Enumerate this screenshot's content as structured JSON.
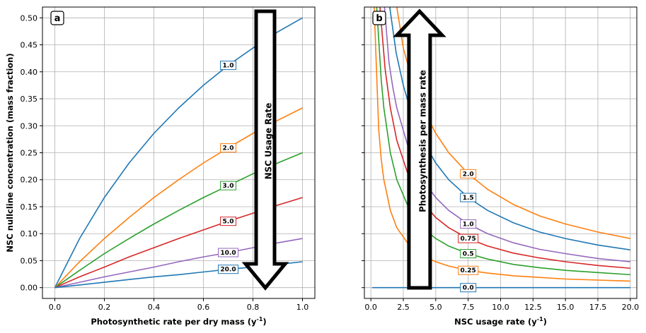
{
  "chart_data": [
    {
      "type": "line",
      "panel_label": "a",
      "xlabel": "Photosynthetic rate per dry mass (y",
      "xlabel_sup": "-1",
      "xlabel_end": ")",
      "ylabel": "NSC nullcline concentration (mass fraction)",
      "xlim": [
        -0.05,
        1.05
      ],
      "ylim": [
        -0.02,
        0.52
      ],
      "x_ticks": [
        0.0,
        0.2,
        0.4,
        0.6,
        0.8,
        1.0
      ],
      "x_tick_labels": [
        "0.0",
        "0.2",
        "0.4",
        "0.6",
        "0.8",
        "1.0"
      ],
      "y_ticks": [
        0.0,
        0.05,
        0.1,
        0.15,
        0.2,
        0.25,
        0.3,
        0.35,
        0.4,
        0.45,
        0.5
      ],
      "y_tick_labels": [
        "0.00",
        "0.05",
        "0.10",
        "0.15",
        "0.20",
        "0.25",
        "0.30",
        "0.35",
        "0.40",
        "0.45",
        "0.50"
      ],
      "grid": true,
      "arrow_text": "NSC Usage Rate",
      "arrow_direction": "down",
      "series": [
        {
          "label": "1.0",
          "color": "#1f77b4",
          "x": [
            0,
            0.1,
            0.2,
            0.3,
            0.4,
            0.5,
            0.6,
            0.7,
            0.8,
            0.9,
            1.0
          ],
          "y": [
            0,
            0.091,
            0.167,
            0.231,
            0.286,
            0.333,
            0.375,
            0.412,
            0.444,
            0.474,
            0.5
          ],
          "label_at": [
            0.7,
            0.412
          ]
        },
        {
          "label": "2.0",
          "color": "#ff7f0e",
          "x": [
            0,
            0.1,
            0.2,
            0.3,
            0.4,
            0.5,
            0.6,
            0.7,
            0.8,
            0.9,
            1.0
          ],
          "y": [
            0,
            0.048,
            0.091,
            0.13,
            0.167,
            0.2,
            0.231,
            0.259,
            0.286,
            0.31,
            0.333
          ],
          "label_at": [
            0.7,
            0.259
          ]
        },
        {
          "label": "3.0",
          "color": "#2ca02c",
          "x": [
            0,
            0.1,
            0.2,
            0.3,
            0.4,
            0.5,
            0.6,
            0.7,
            0.8,
            0.9,
            1.0
          ],
          "y": [
            0,
            0.032,
            0.063,
            0.091,
            0.118,
            0.143,
            0.167,
            0.189,
            0.211,
            0.231,
            0.25
          ],
          "label_at": [
            0.7,
            0.189
          ]
        },
        {
          "label": "5.0",
          "color": "#d62728",
          "x": [
            0,
            0.1,
            0.2,
            0.3,
            0.4,
            0.5,
            0.6,
            0.7,
            0.8,
            0.9,
            1.0
          ],
          "y": [
            0,
            0.02,
            0.038,
            0.057,
            0.074,
            0.091,
            0.107,
            0.123,
            0.138,
            0.153,
            0.167
          ],
          "label_at": [
            0.7,
            0.123
          ]
        },
        {
          "label": "10.0",
          "color": "#9467bd",
          "x": [
            0,
            0.1,
            0.2,
            0.3,
            0.4,
            0.5,
            0.6,
            0.7,
            0.8,
            0.9,
            1.0
          ],
          "y": [
            0,
            0.01,
            0.02,
            0.029,
            0.038,
            0.048,
            0.057,
            0.065,
            0.074,
            0.083,
            0.091
          ],
          "label_at": [
            0.7,
            0.065
          ]
        },
        {
          "label": "20.0",
          "color": "#1f77b4",
          "x": [
            0,
            0.1,
            0.2,
            0.3,
            0.4,
            0.5,
            0.6,
            0.7,
            0.8,
            0.9,
            1.0
          ],
          "y": [
            0,
            0.005,
            0.01,
            0.015,
            0.02,
            0.024,
            0.029,
            0.034,
            0.038,
            0.043,
            0.048
          ],
          "label_at": [
            0.7,
            0.034
          ]
        }
      ]
    },
    {
      "type": "line",
      "panel_label": "b",
      "xlabel": "NSC usage rate (y",
      "xlabel_sup": "-1",
      "xlabel_end": ")",
      "ylabel": "",
      "xlim": [
        -0.5,
        20.5
      ],
      "ylim": [
        -0.02,
        0.52
      ],
      "x_ticks": [
        0,
        2.5,
        5,
        7.5,
        10,
        12.5,
        15,
        17.5,
        20
      ],
      "x_tick_labels": [
        "0.0",
        "2.5",
        "5.0",
        "7.5",
        "10.0",
        "12.5",
        "15.0",
        "17.5",
        "20.0"
      ],
      "y_ticks": [
        0.0,
        0.05,
        0.1,
        0.15,
        0.2,
        0.25,
        0.3,
        0.35,
        0.4,
        0.45,
        0.5
      ],
      "grid": true,
      "arrow_text": "Photosynthesis per mass rate",
      "arrow_direction": "up",
      "series": [
        {
          "label": "0.0",
          "color": "#1f77b4",
          "x": [
            0.1,
            20
          ],
          "y": [
            0,
            0
          ],
          "label_at": [
            7.5,
            0.0
          ]
        },
        {
          "label": "0.25",
          "color": "#ff7f0e",
          "x": [
            0.6,
            0.8,
            1,
            1.5,
            2,
            3,
            4,
            5,
            6,
            7.5,
            9,
            11,
            13,
            15,
            17.5,
            20
          ],
          "y": [
            0.294,
            0.238,
            0.2,
            0.143,
            0.111,
            0.077,
            0.059,
            0.048,
            0.04,
            0.032,
            0.027,
            0.022,
            0.019,
            0.016,
            0.014,
            0.012
          ],
          "label_at": [
            7.5,
            0.032
          ]
        },
        {
          "label": "0.5",
          "color": "#2ca02c",
          "x": [
            0.8,
            1,
            1.5,
            2,
            3,
            4,
            5,
            6,
            7.5,
            9,
            11,
            13,
            15,
            17.5,
            20
          ],
          "y": [
            0.385,
            0.333,
            0.25,
            0.2,
            0.143,
            0.111,
            0.091,
            0.077,
            0.063,
            0.053,
            0.043,
            0.037,
            0.032,
            0.028,
            0.024
          ],
          "label_at": [
            7.5,
            0.063
          ]
        },
        {
          "label": "0.75",
          "color": "#d62728",
          "x": [
            1.1,
            1.5,
            2,
            3,
            4,
            5,
            6,
            7.5,
            9,
            11,
            13,
            15,
            17.5,
            20
          ],
          "y": [
            0.405,
            0.333,
            0.273,
            0.2,
            0.158,
            0.13,
            0.111,
            0.091,
            0.077,
            0.064,
            0.055,
            0.048,
            0.041,
            0.036
          ],
          "label_at": [
            7.5,
            0.091
          ]
        },
        {
          "label": "1.0",
          "color": "#9467bd",
          "x": [
            1.4,
            1.7,
            2,
            3,
            4,
            5,
            6,
            7.5,
            9,
            11,
            13,
            15,
            17.5,
            20
          ],
          "y": [
            0.417,
            0.37,
            0.333,
            0.25,
            0.2,
            0.167,
            0.143,
            0.118,
            0.1,
            0.083,
            0.071,
            0.063,
            0.054,
            0.048
          ],
          "label_at": [
            7.5,
            0.118
          ]
        },
        {
          "label": "1.5",
          "color": "#1f77b4",
          "x": [
            1.95,
            2.5,
            3,
            4,
            5,
            6,
            7.5,
            9,
            11,
            13,
            15,
            17.5,
            20
          ],
          "y": [
            0.435,
            0.375,
            0.333,
            0.273,
            0.231,
            0.2,
            0.167,
            0.143,
            0.12,
            0.103,
            0.091,
            0.079,
            0.07
          ],
          "label_at": [
            7.5,
            0.167
          ]
        },
        {
          "label": "2.0",
          "color": "#ff7f0e",
          "x": [
            2.5,
            3,
            4,
            5,
            6,
            7.5,
            9,
            11,
            13,
            15,
            17.5,
            20
          ],
          "y": [
            0.444,
            0.4,
            0.333,
            0.286,
            0.25,
            0.211,
            0.182,
            0.154,
            0.133,
            0.118,
            0.103,
            0.091
          ],
          "label_at": [
            7.5,
            0.211
          ]
        },
        {
          "color": "#9467bd",
          "x": [
            1.05,
            1.4
          ],
          "y": [
            0.52,
            0.417
          ]
        },
        {
          "color": "#d62728",
          "x": [
            0.7,
            1.1
          ],
          "y": [
            0.52,
            0.405
          ]
        },
        {
          "color": "#2ca02c",
          "x": [
            0.45,
            0.8
          ],
          "y": [
            0.52,
            0.385
          ]
        },
        {
          "color": "#ff7f0e",
          "x": [
            0.25,
            0.6
          ],
          "y": [
            0.52,
            0.294
          ]
        },
        {
          "color": "#1f77b4",
          "x": [
            1.45,
            1.95
          ],
          "y": [
            0.52,
            0.435
          ]
        },
        {
          "color": "#ff7f0e",
          "x": [
            2.0,
            2.5
          ],
          "y": [
            0.52,
            0.444
          ]
        }
      ]
    }
  ]
}
